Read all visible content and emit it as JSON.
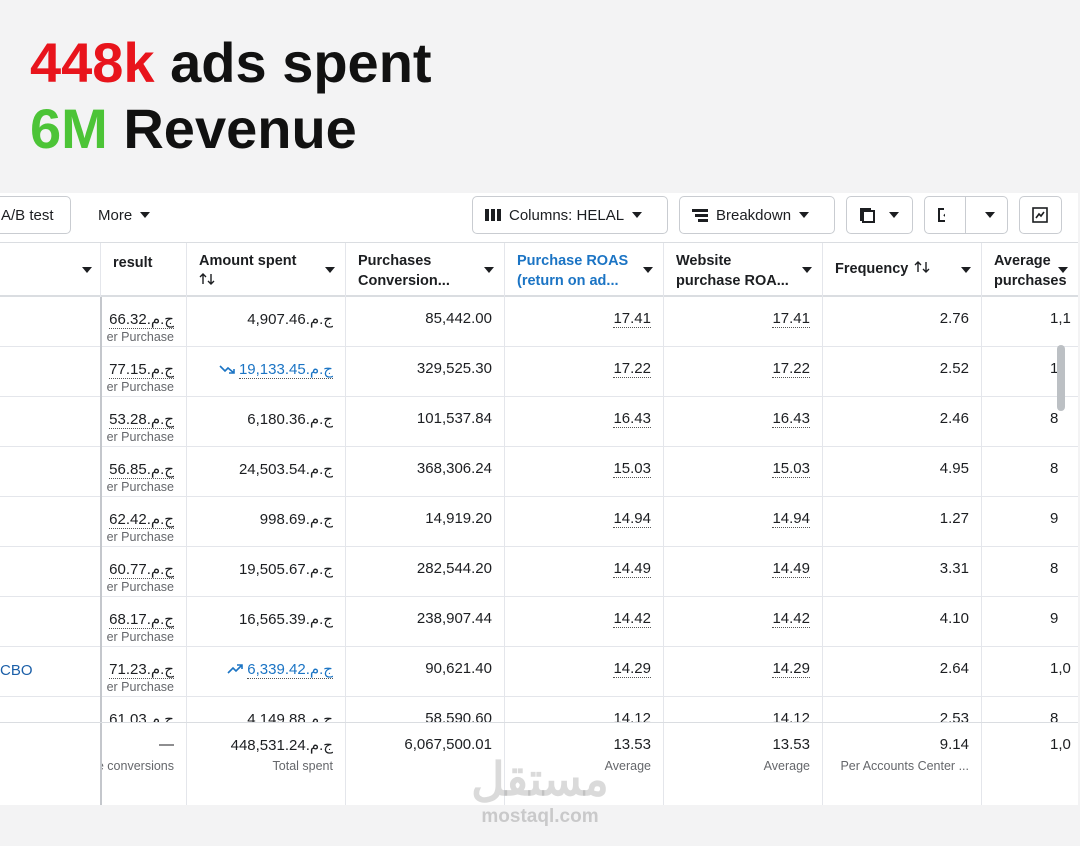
{
  "headline": {
    "line1": {
      "accent": "448k",
      "text": "ads spent"
    },
    "line2": {
      "accent": "6M",
      "text": "Revenue"
    }
  },
  "toolbar": {
    "ab_test": "A/B test",
    "more": "More",
    "columns": "Columns: HELAL",
    "breakdown": "Breakdown"
  },
  "table": {
    "headers": [
      {
        "lines": [
          "result"
        ]
      },
      {
        "lines": [
          "Amount spent"
        ],
        "sort": "below"
      },
      {
        "lines": [
          "Purchases",
          "Conversion..."
        ]
      },
      {
        "lines": [
          "Purchase ROAS",
          "(return on ad..."
        ],
        "active": true
      },
      {
        "lines": [
          "Website",
          "purchase ROA..."
        ]
      },
      {
        "lines": [
          "Frequency"
        ],
        "sort": "beside"
      },
      {
        "lines": [
          "Average",
          "purchases."
        ]
      }
    ],
    "rows": [
      {
        "cost": "ج.م.66.32",
        "cost_sub": "er Purchase",
        "spent": "ج.م.4,907.46",
        "conv": "85,442.00",
        "roas": "17.41",
        "web_roas": "17.41",
        "freq": "2.76",
        "avg": "1,1"
      },
      {
        "cost": "ج.م.77.15",
        "cost_sub": "er Purchase",
        "spent": "ج.م.19,133.45",
        "trend": "down",
        "conv": "329,525.30",
        "roas": "17.22",
        "web_roas": "17.22",
        "freq": "2.52",
        "avg": "1,"
      },
      {
        "cost": "ج.م.53.28",
        "cost_sub": "er Purchase",
        "spent": "ج.م.6,180.36",
        "conv": "101,537.84",
        "roas": "16.43",
        "web_roas": "16.43",
        "freq": "2.46",
        "avg": "8"
      },
      {
        "cost": "ج.م.56.85",
        "cost_sub": "er Purchase",
        "spent": "ج.م.24,503.54",
        "conv": "368,306.24",
        "roas": "15.03",
        "web_roas": "15.03",
        "freq": "4.95",
        "avg": "8"
      },
      {
        "cost": "ج.م.62.42",
        "cost_sub": "er Purchase",
        "spent": "ج.م.998.69",
        "conv": "14,919.20",
        "roas": "14.94",
        "web_roas": "14.94",
        "freq": "1.27",
        "avg": "9"
      },
      {
        "cost": "ج.م.60.77",
        "cost_sub": "er Purchase",
        "spent": "ج.م.19,505.67",
        "conv": "282,544.20",
        "roas": "14.49",
        "web_roas": "14.49",
        "freq": "3.31",
        "avg": "8"
      },
      {
        "cost": "ج.م.68.17",
        "cost_sub": "er Purchase",
        "spent": "ج.م.16,565.39",
        "conv": "238,907.44",
        "roas": "14.42",
        "web_roas": "14.42",
        "freq": "4.10",
        "avg": "9"
      },
      {
        "name": "CBO",
        "cost": "ج.م.71.23",
        "cost_sub": "er Purchase",
        "spent": "ج.م.6,339.42",
        "trend": "up",
        "conv": "90,621.40",
        "roas": "14.29",
        "web_roas": "14.29",
        "freq": "2.64",
        "avg": "1,0"
      },
      {
        "cost": "ج.م.61.03",
        "spent": "ج.م.4,149.88",
        "conv": "58,590.60",
        "roas": "14.12",
        "web_roas": "14.12",
        "freq": "2.53",
        "avg": "8"
      }
    ],
    "totals": {
      "cost": "—",
      "cost_sub": "e conversions",
      "spent": "ج.م.448,531.24",
      "spent_sub": "Total spent",
      "conv": "6,067,500.01",
      "roas": "13.53",
      "roas_sub": "Average",
      "web_roas": "13.53",
      "web_roas_sub": "Average",
      "freq": "9.14",
      "freq_sub": "Per Accounts Center ...",
      "avg": "1,0"
    }
  },
  "watermark": {
    "logo": "مستقل",
    "site": "mostaql.com"
  }
}
